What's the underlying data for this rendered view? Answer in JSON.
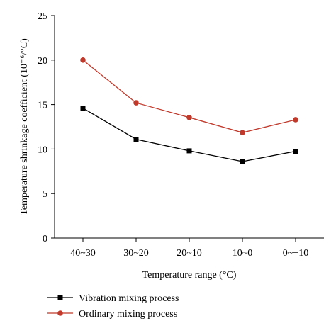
{
  "chart_data": {
    "type": "line",
    "title": "",
    "xlabel": "Temperature range (°C)",
    "ylabel": "Temperature shrinkage coefficient (10⁻⁶/°C)",
    "categories": [
      "40~30",
      "30~20",
      "20~10",
      "10~0",
      "0~−10"
    ],
    "ylim": [
      0,
      25
    ],
    "yticks": [
      0,
      5,
      10,
      15,
      20,
      25
    ],
    "grid": false,
    "legend_position": "bottom",
    "series": [
      {
        "name": "Vibration mixing process",
        "values": [
          14.6,
          11.1,
          9.8,
          8.6,
          9.75
        ],
        "color": "#000000",
        "marker": "square"
      },
      {
        "name": "Ordinary mixing process",
        "values": [
          20.0,
          15.2,
          13.55,
          11.85,
          13.3
        ],
        "color": "#c0392b",
        "marker": "circle"
      }
    ]
  }
}
